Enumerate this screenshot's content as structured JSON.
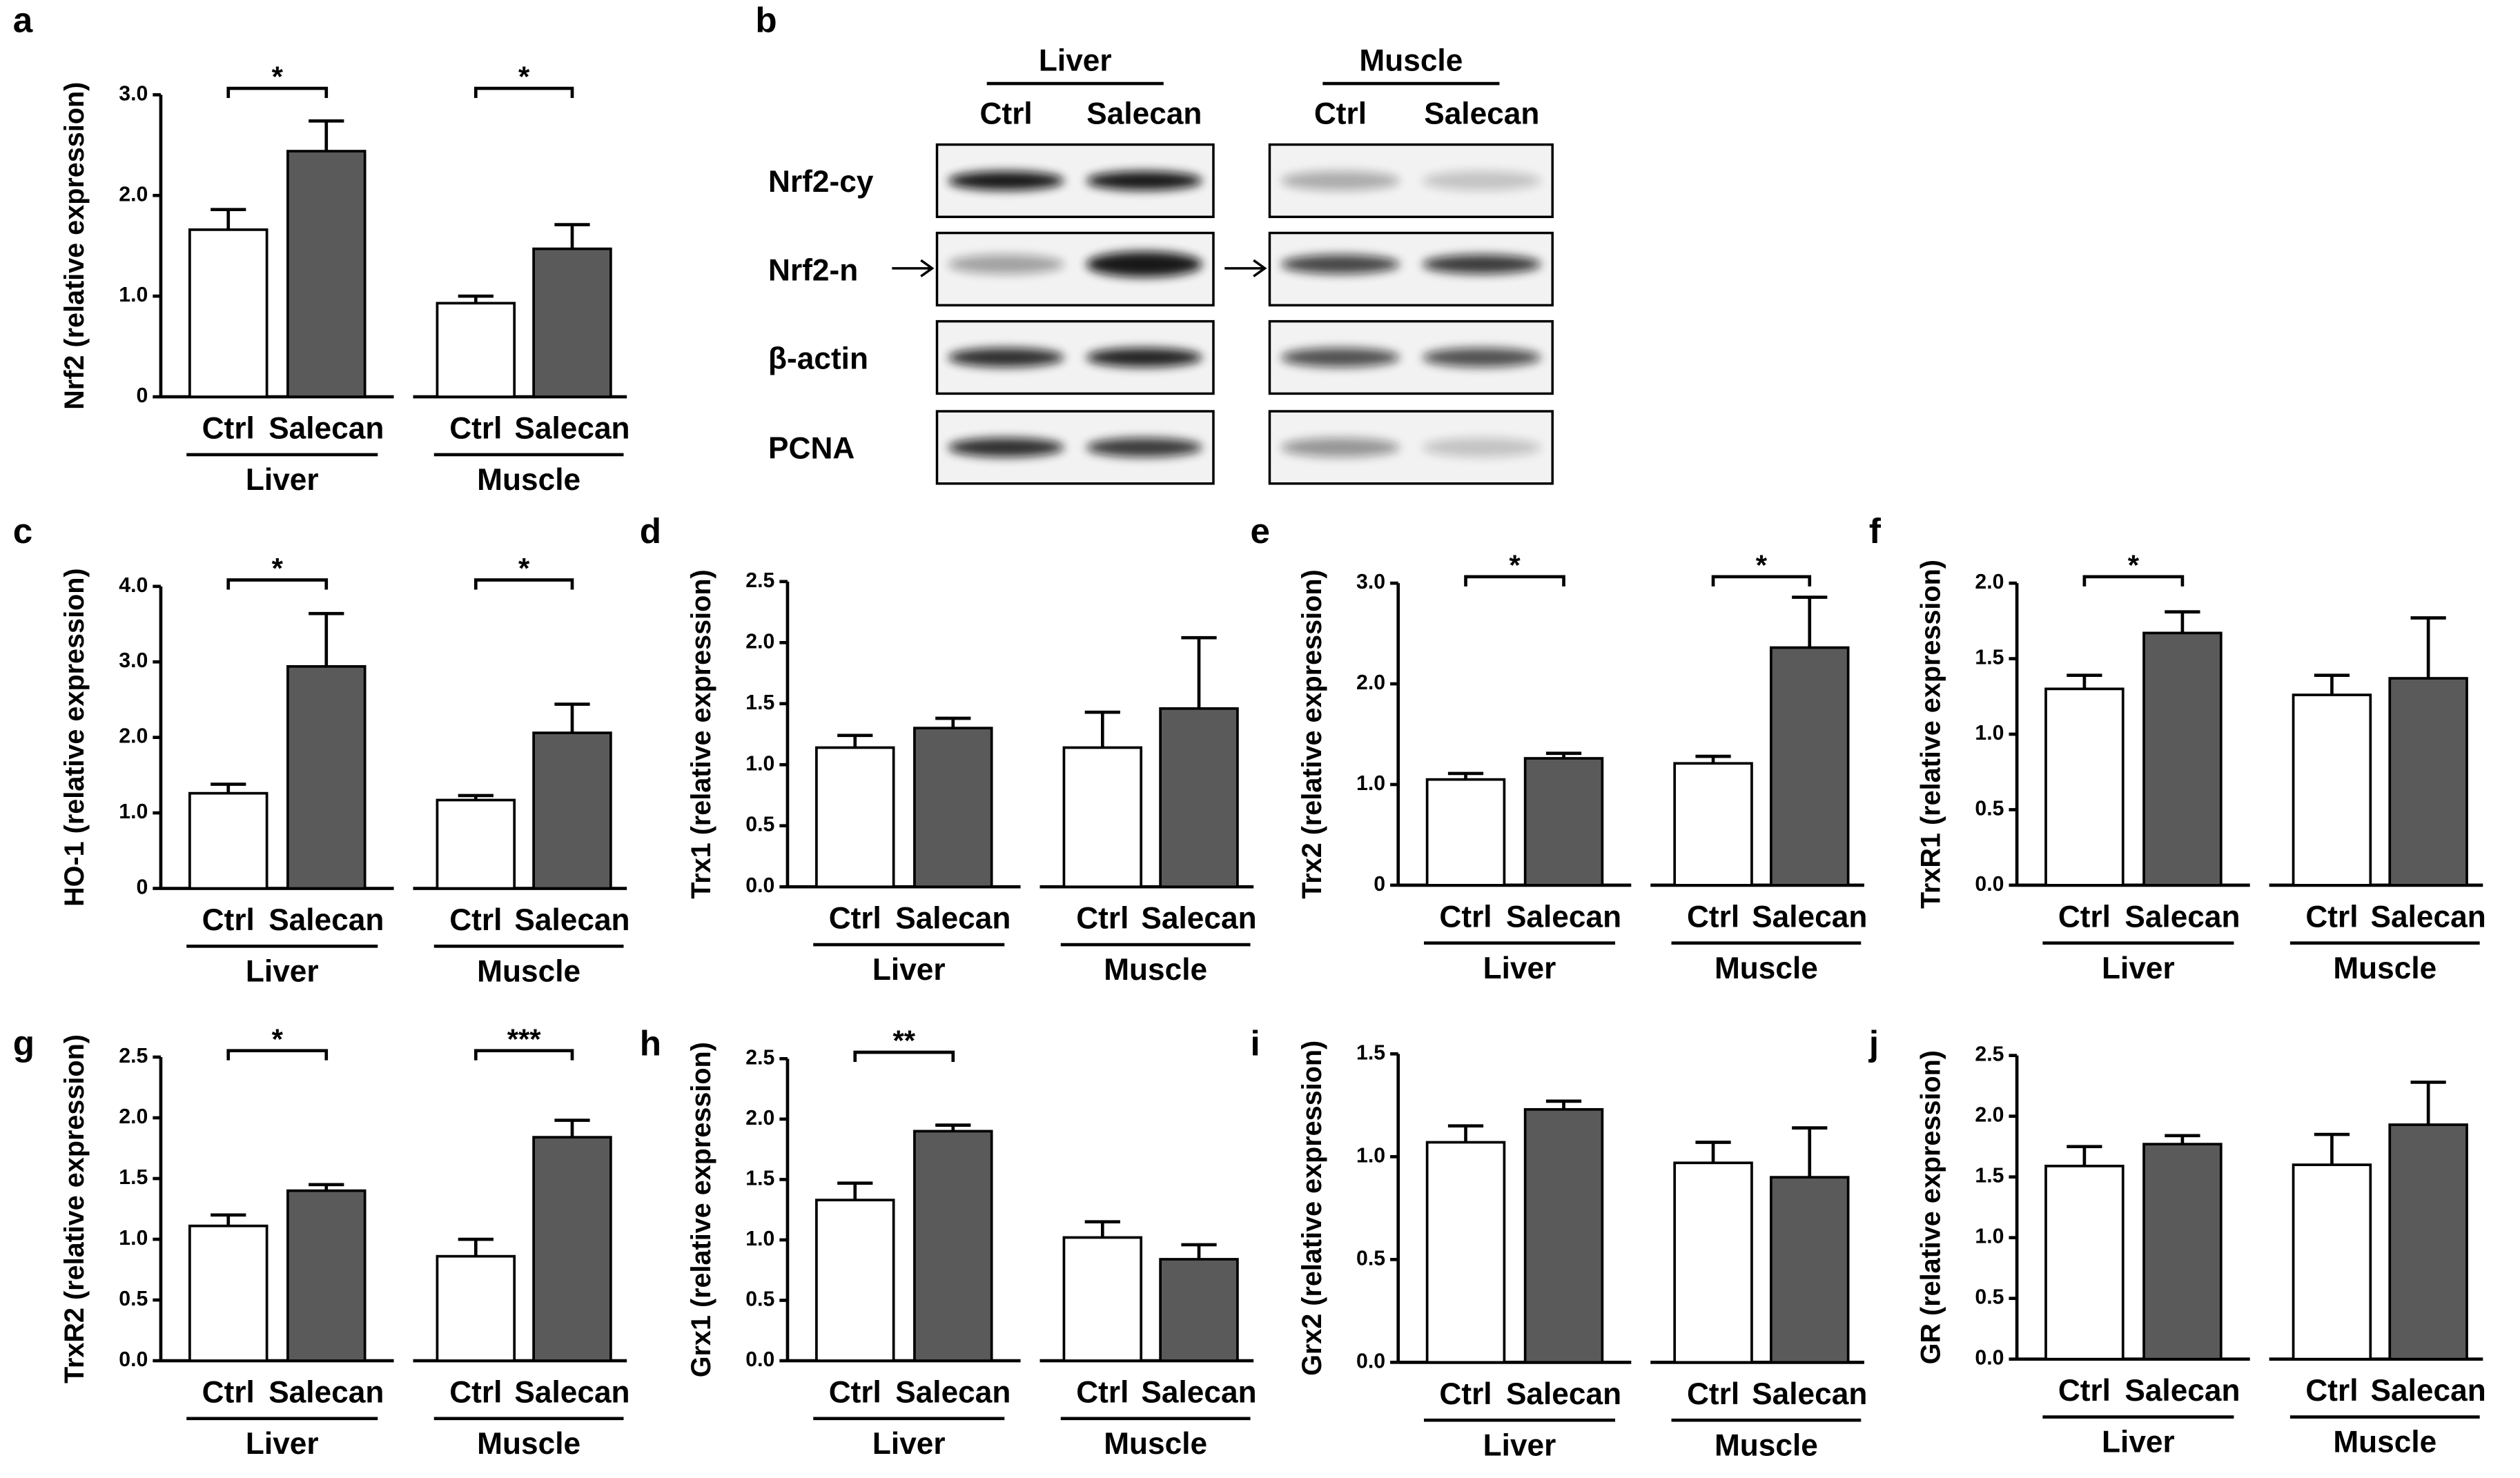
{
  "chart_data": [
    {
      "type": "bar",
      "panel": "a",
      "ylabel": "Nrf2 (relative expression)",
      "categories": [
        "Ctrl",
        "Salecan",
        "Ctrl",
        "Salecan"
      ],
      "groups": [
        "Liver",
        "Muscle"
      ],
      "values": [
        1.66,
        2.44,
        0.93,
        1.47
      ],
      "errors": [
        0.2,
        0.3,
        0.07,
        0.24
      ],
      "bar_colors": [
        "#ffffff",
        "#5a5a5a",
        "#ffffff",
        "#5a5a5a"
      ],
      "ylim": [
        0,
        3
      ],
      "yticks": [
        0,
        {
          "value": 1,
          "label": "1.0"
        },
        {
          "value": 2,
          "label": "2.0"
        },
        {
          "value": 3,
          "label": "3.0"
        }
      ],
      "significance": [
        {
          "between": [
            0,
            1
          ],
          "label": "*"
        },
        {
          "between": [
            2,
            3
          ],
          "label": "*"
        }
      ]
    },
    {
      "type": "bar",
      "panel": "c",
      "ylabel": "HO-1 (relative expression)",
      "categories": [
        "Ctrl",
        "Salecan",
        "Ctrl",
        "Salecan"
      ],
      "groups": [
        "Liver",
        "Muscle"
      ],
      "values": [
        1.26,
        2.94,
        1.17,
        2.06
      ],
      "errors": [
        0.12,
        0.7,
        0.06,
        0.38
      ],
      "bar_colors": [
        "#ffffff",
        "#5a5a5a",
        "#ffffff",
        "#5a5a5a"
      ],
      "ylim": [
        0,
        4
      ],
      "yticks": [
        0,
        {
          "value": 1,
          "label": "1.0"
        },
        {
          "value": 2,
          "label": "2.0"
        },
        {
          "value": 3,
          "label": "3.0"
        },
        {
          "value": 4,
          "label": "4.0"
        }
      ],
      "significance": [
        {
          "between": [
            0,
            1
          ],
          "label": "*"
        },
        {
          "between": [
            2,
            3
          ],
          "label": "*"
        }
      ]
    },
    {
      "type": "bar",
      "panel": "d",
      "ylabel": "Trx1 (relative expression)",
      "categories": [
        "Ctrl",
        "Salecan",
        "Ctrl",
        "Salecan"
      ],
      "groups": [
        "Liver",
        "Muscle"
      ],
      "values": [
        1.14,
        1.3,
        1.14,
        1.46
      ],
      "errors": [
        0.1,
        0.08,
        0.29,
        0.58
      ],
      "bar_colors": [
        "#ffffff",
        "#5a5a5a",
        "#ffffff",
        "#5a5a5a"
      ],
      "ylim": [
        0,
        2.5
      ],
      "yticks": [
        {
          "value": 0,
          "label": "0.0"
        },
        0.5,
        {
          "value": 1,
          "label": "1.0"
        },
        1.5,
        {
          "value": 2,
          "label": "2.0"
        },
        2.5
      ],
      "significance": []
    },
    {
      "type": "bar",
      "panel": "e",
      "ylabel": "Trx2 (relative expression)",
      "categories": [
        "Ctrl",
        "Salecan",
        "Ctrl",
        "Salecan"
      ],
      "groups": [
        "Liver",
        "Muscle"
      ],
      "values": [
        1.05,
        1.26,
        1.21,
        2.36
      ],
      "errors": [
        0.06,
        0.05,
        0.07,
        0.5
      ],
      "bar_colors": [
        "#ffffff",
        "#5a5a5a",
        "#ffffff",
        "#5a5a5a"
      ],
      "ylim": [
        0,
        3
      ],
      "yticks": [
        0,
        {
          "value": 1,
          "label": "1.0"
        },
        {
          "value": 2,
          "label": "2.0"
        },
        {
          "value": 3,
          "label": "3.0"
        }
      ],
      "significance": [
        {
          "between": [
            0,
            1
          ],
          "label": "*"
        },
        {
          "between": [
            2,
            3
          ],
          "label": "*"
        }
      ]
    },
    {
      "type": "bar",
      "panel": "f",
      "ylabel": "TrxR1 (relative expression)",
      "categories": [
        "Ctrl",
        "Salecan",
        "Ctrl",
        "Salecan"
      ],
      "groups": [
        "Liver",
        "Muscle"
      ],
      "values": [
        1.3,
        1.67,
        1.26,
        1.37
      ],
      "errors": [
        0.09,
        0.14,
        0.13,
        0.4
      ],
      "bar_colors": [
        "#ffffff",
        "#5a5a5a",
        "#ffffff",
        "#5a5a5a"
      ],
      "ylim": [
        0,
        2
      ],
      "yticks": [
        {
          "value": 0,
          "label": "0.0"
        },
        0.5,
        {
          "value": 1,
          "label": "1.0"
        },
        1.5,
        {
          "value": 2,
          "label": "2.0"
        }
      ],
      "significance": [
        {
          "between": [
            0,
            1
          ],
          "label": "*"
        }
      ]
    },
    {
      "type": "bar",
      "panel": "g",
      "ylabel": "TrxR2 (relative expression)",
      "categories": [
        "Ctrl",
        "Salecan",
        "Ctrl",
        "Salecan"
      ],
      "groups": [
        "Liver",
        "Muscle"
      ],
      "values": [
        1.11,
        1.4,
        0.86,
        1.84
      ],
      "errors": [
        0.09,
        0.05,
        0.14,
        0.14
      ],
      "bar_colors": [
        "#ffffff",
        "#5a5a5a",
        "#ffffff",
        "#5a5a5a"
      ],
      "ylim": [
        0,
        2.5
      ],
      "yticks": [
        {
          "value": 0,
          "label": "0.0"
        },
        0.5,
        {
          "value": 1,
          "label": "1.0"
        },
        1.5,
        {
          "value": 2,
          "label": "2.0"
        },
        2.5
      ],
      "significance": [
        {
          "between": [
            0,
            1
          ],
          "label": "*"
        },
        {
          "between": [
            2,
            3
          ],
          "label": "***"
        }
      ]
    },
    {
      "type": "bar",
      "panel": "h",
      "ylabel": "Grx1 (relative expression)",
      "categories": [
        "Ctrl",
        "Salecan",
        "Ctrl",
        "Salecan"
      ],
      "groups": [
        "Liver",
        "Muscle"
      ],
      "values": [
        1.33,
        1.9,
        1.02,
        0.84
      ],
      "errors": [
        0.14,
        0.05,
        0.13,
        0.12
      ],
      "bar_colors": [
        "#ffffff",
        "#5a5a5a",
        "#ffffff",
        "#5a5a5a"
      ],
      "ylim": [
        0,
        2.5
      ],
      "yticks": [
        {
          "value": 0,
          "label": "0.0"
        },
        0.5,
        {
          "value": 1,
          "label": "1.0"
        },
        1.5,
        {
          "value": 2,
          "label": "2.0"
        },
        2.5
      ],
      "significance": [
        {
          "between": [
            0,
            1
          ],
          "label": "**"
        }
      ]
    },
    {
      "type": "bar",
      "panel": "i",
      "ylabel": "Grx2 (relative expression)",
      "categories": [
        "Ctrl",
        "Salecan",
        "Ctrl",
        "Salecan"
      ],
      "groups": [
        "Liver",
        "Muscle"
      ],
      "values": [
        1.07,
        1.23,
        0.97,
        0.9
      ],
      "errors": [
        0.08,
        0.04,
        0.1,
        0.24
      ],
      "bar_colors": [
        "#ffffff",
        "#5a5a5a",
        "#ffffff",
        "#5a5a5a"
      ],
      "ylim": [
        0,
        1.5
      ],
      "yticks": [
        {
          "value": 0,
          "label": "0.0"
        },
        0.5,
        {
          "value": 1,
          "label": "1.0"
        },
        1.5
      ],
      "significance": []
    },
    {
      "type": "bar",
      "panel": "j",
      "ylabel": "GR (relative expression)",
      "categories": [
        "Ctrl",
        "Salecan",
        "Ctrl",
        "Salecan"
      ],
      "groups": [
        "Liver",
        "Muscle"
      ],
      "values": [
        1.59,
        1.77,
        1.6,
        1.93
      ],
      "errors": [
        0.16,
        0.07,
        0.25,
        0.35
      ],
      "bar_colors": [
        "#ffffff",
        "#5a5a5a",
        "#ffffff",
        "#5a5a5a"
      ],
      "ylim": [
        0,
        2.5
      ],
      "yticks": [
        {
          "value": 0,
          "label": "0.0"
        },
        0.5,
        {
          "value": 1,
          "label": "1.0"
        },
        1.5,
        {
          "value": 2,
          "label": "2.0"
        },
        2.5
      ],
      "significance": []
    }
  ],
  "blot": {
    "panel": "b",
    "groups": [
      {
        "name": "Liver",
        "lanes": [
          "Ctrl",
          "Salecan"
        ]
      },
      {
        "name": "Muscle",
        "lanes": [
          "Ctrl",
          "Salecan"
        ]
      }
    ],
    "rows": [
      "Nrf2-cy",
      "Nrf2-n",
      "β-actin",
      "PCNA"
    ]
  }
}
